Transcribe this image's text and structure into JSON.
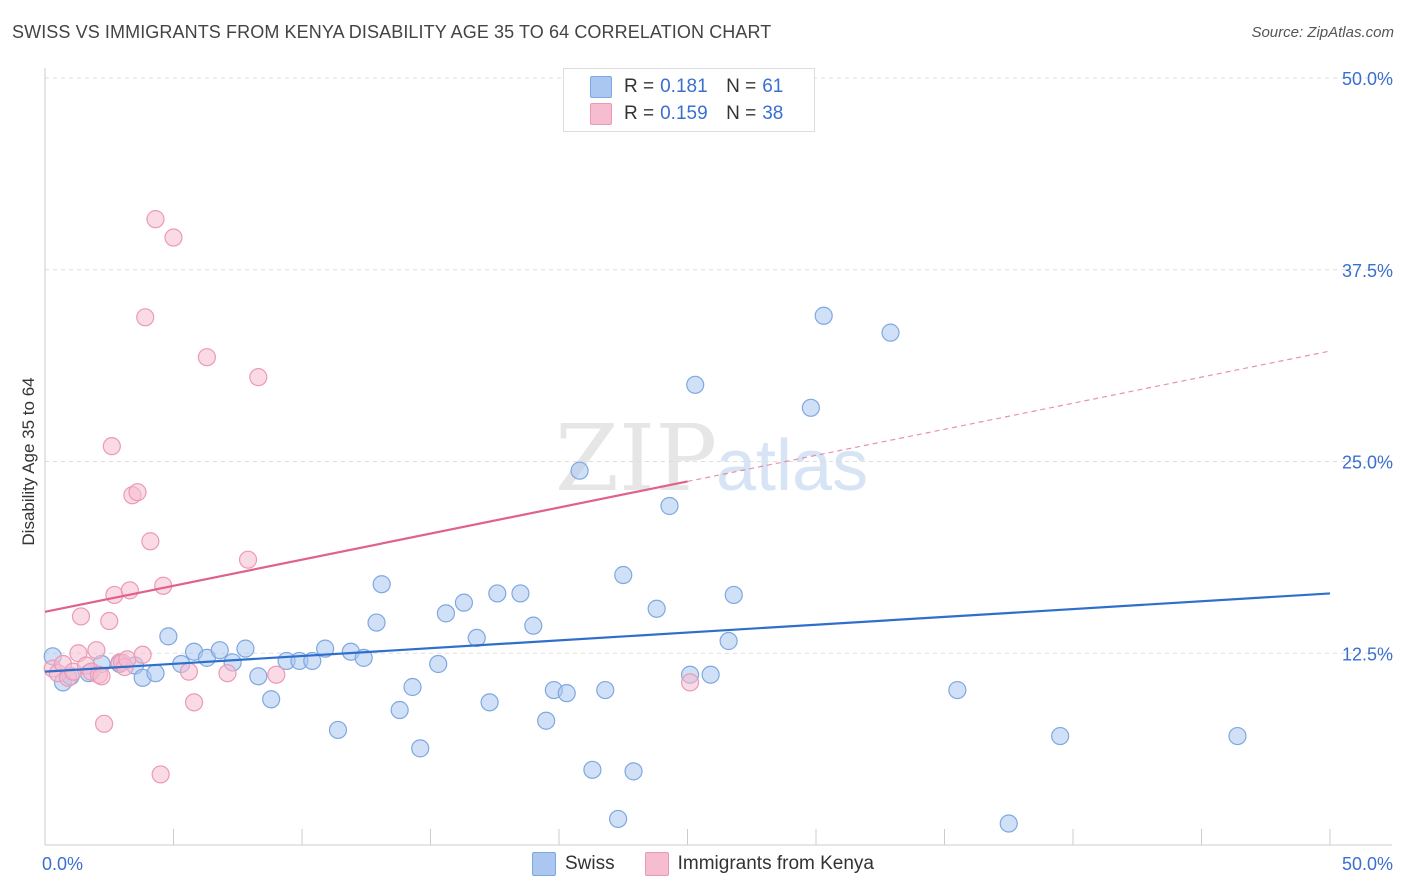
{
  "header": {
    "title": "SWISS VS IMMIGRANTS FROM KENYA DISABILITY AGE 35 TO 64 CORRELATION CHART",
    "source": "Source: ZipAtlas.com"
  },
  "watermark": {
    "zip": "ZIP",
    "atlas": "atlas"
  },
  "stats_legend": [
    {
      "r_label": "R =",
      "r_value": "0.181",
      "n_label": "N =",
      "n_value": "61",
      "color": "#a9c7f0"
    },
    {
      "r_label": "R =",
      "r_value": "0.159",
      "n_label": "N =",
      "n_value": "38",
      "color": "#f6bcd0"
    }
  ],
  "colors": {
    "swiss_fill": "#a9c7f0",
    "swiss_stroke": "#7fa8e0",
    "swiss_line": "#2f6fcc",
    "kenya_fill": "#f6bcd0",
    "kenya_stroke": "#eb9ab6",
    "kenya_line": "#e0628c",
    "tick_label": "#3a6fd0",
    "grid": "#dddddd"
  },
  "chart_data": {
    "type": "scatter",
    "title": "SWISS VS IMMIGRANTS FROM KENYA DISABILITY AGE 35 TO 64 CORRELATION CHART",
    "xlabel": "",
    "ylabel": "Disability Age 35 to 64",
    "xlim": [
      0,
      50
    ],
    "ylim": [
      0,
      50
    ],
    "x_tick_labels": [
      "0.0%",
      "50.0%"
    ],
    "y_tick_labels": [
      "12.5%",
      "25.0%",
      "37.5%",
      "50.0%"
    ],
    "y_ticks": [
      12.5,
      25.0,
      37.5,
      50.0
    ],
    "grid": true,
    "legend_position": "bottom",
    "series": [
      {
        "name": "Swiss",
        "trend": {
          "x": [
            0,
            50
          ],
          "y": [
            11.3,
            16.4
          ]
        },
        "points": [
          [
            0.3,
            12.3
          ],
          [
            0.7,
            10.6
          ],
          [
            1.0,
            11.0
          ],
          [
            1.7,
            11.2
          ],
          [
            2.2,
            11.8
          ],
          [
            2.9,
            11.8
          ],
          [
            3.5,
            11.7
          ],
          [
            3.8,
            10.9
          ],
          [
            4.3,
            11.2
          ],
          [
            4.8,
            13.6
          ],
          [
            5.3,
            11.8
          ],
          [
            5.8,
            12.6
          ],
          [
            6.3,
            12.2
          ],
          [
            6.8,
            12.7
          ],
          [
            7.3,
            11.9
          ],
          [
            7.8,
            12.8
          ],
          [
            8.3,
            11.0
          ],
          [
            8.8,
            9.5
          ],
          [
            9.4,
            12.0
          ],
          [
            9.9,
            12.0
          ],
          [
            10.4,
            12.0
          ],
          [
            10.9,
            12.8
          ],
          [
            11.4,
            7.5
          ],
          [
            11.9,
            12.6
          ],
          [
            12.4,
            12.2
          ],
          [
            12.9,
            14.5
          ],
          [
            13.1,
            17.0
          ],
          [
            13.8,
            8.8
          ],
          [
            14.3,
            10.3
          ],
          [
            14.6,
            6.3
          ],
          [
            15.3,
            11.8
          ],
          [
            15.6,
            15.1
          ],
          [
            16.3,
            15.8
          ],
          [
            16.8,
            13.5
          ],
          [
            17.3,
            9.3
          ],
          [
            17.6,
            16.4
          ],
          [
            18.5,
            16.4
          ],
          [
            19.0,
            14.3
          ],
          [
            19.5,
            8.1
          ],
          [
            19.8,
            10.1
          ],
          [
            20.3,
            9.9
          ],
          [
            20.8,
            24.4
          ],
          [
            21.3,
            4.9
          ],
          [
            21.8,
            10.1
          ],
          [
            22.3,
            1.7
          ],
          [
            22.5,
            17.6
          ],
          [
            22.9,
            4.8
          ],
          [
            23.8,
            15.4
          ],
          [
            24.3,
            22.1
          ],
          [
            25.1,
            11.1
          ],
          [
            25.3,
            30.0
          ],
          [
            25.9,
            11.1
          ],
          [
            26.6,
            13.3
          ],
          [
            26.8,
            16.3
          ],
          [
            29.8,
            28.5
          ],
          [
            30.3,
            34.5
          ],
          [
            32.9,
            33.4
          ],
          [
            35.5,
            10.1
          ],
          [
            37.5,
            1.4
          ],
          [
            39.5,
            7.1
          ],
          [
            46.4,
            7.1
          ]
        ]
      },
      {
        "name": "Immigrants from Kenya",
        "trend": {
          "x": [
            0,
            25
          ],
          "y": [
            15.2,
            23.7
          ]
        },
        "trend_extension": {
          "x": [
            25,
            50
          ],
          "y": [
            23.7,
            32.2
          ]
        },
        "points": [
          [
            0.3,
            11.5
          ],
          [
            0.5,
            11.2
          ],
          [
            0.7,
            11.8
          ],
          [
            0.9,
            10.9
          ],
          [
            1.1,
            11.3
          ],
          [
            1.3,
            12.5
          ],
          [
            1.4,
            14.9
          ],
          [
            1.6,
            11.7
          ],
          [
            1.8,
            11.3
          ],
          [
            2.0,
            12.7
          ],
          [
            2.1,
            11.1
          ],
          [
            2.2,
            11.0
          ],
          [
            2.3,
            7.9
          ],
          [
            2.5,
            14.6
          ],
          [
            2.6,
            26.0
          ],
          [
            2.7,
            16.3
          ],
          [
            2.9,
            11.9
          ],
          [
            3.0,
            11.9
          ],
          [
            3.1,
            11.6
          ],
          [
            3.2,
            12.1
          ],
          [
            3.3,
            16.6
          ],
          [
            3.4,
            22.8
          ],
          [
            3.6,
            23.0
          ],
          [
            3.8,
            12.4
          ],
          [
            3.9,
            34.4
          ],
          [
            4.1,
            19.8
          ],
          [
            4.3,
            40.8
          ],
          [
            4.5,
            4.6
          ],
          [
            4.6,
            16.9
          ],
          [
            5.0,
            39.6
          ],
          [
            5.6,
            11.3
          ],
          [
            5.8,
            9.3
          ],
          [
            6.3,
            31.8
          ],
          [
            7.1,
            11.2
          ],
          [
            7.9,
            18.6
          ],
          [
            8.3,
            30.5
          ],
          [
            9.0,
            11.1
          ],
          [
            25.1,
            10.6
          ]
        ]
      }
    ]
  },
  "bottom_legend": [
    {
      "label": "Swiss",
      "color": "#a9c7f0"
    },
    {
      "label": "Immigrants from Kenya",
      "color": "#f6bcd0"
    }
  ]
}
